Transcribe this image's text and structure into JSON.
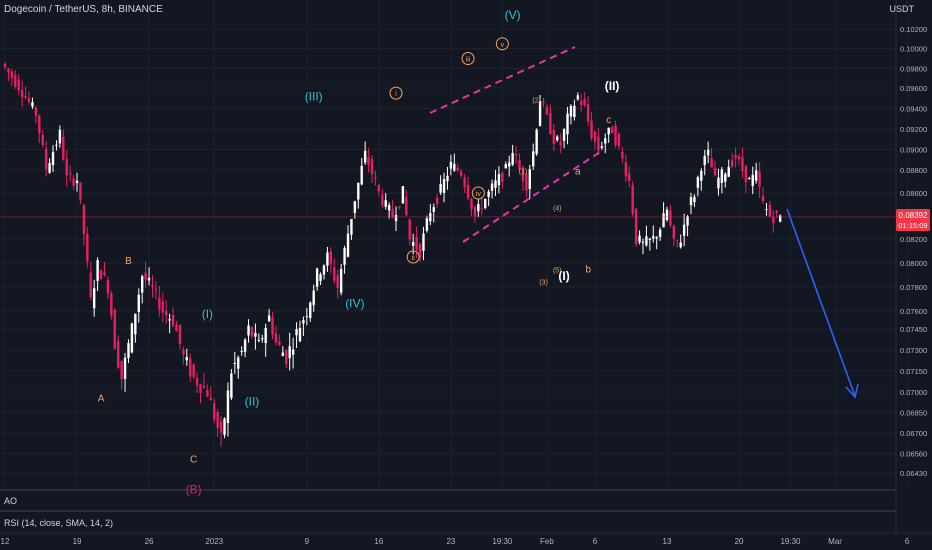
{
  "header": {
    "title": "Dogecoin / TetherUS, 8h, BINANCE",
    "currency": "USDT"
  },
  "panes": {
    "ao_label": "AO",
    "rsi_label": "RSI (14, close, SMA, 14, 2)"
  },
  "price_tag": {
    "value": "0.08392",
    "countdown": "01:15:09",
    "color": "#f23645"
  },
  "colors": {
    "up": "#ffffff",
    "down": "#e91e63",
    "channel": "#e535ab",
    "forecast": "#2962ff",
    "wave_cyan": "#26c6da",
    "wave_orange": "#f7a35c",
    "wave_white": "#ffffff",
    "wave_red": "#e91e63"
  },
  "chart_data": {
    "type": "candlestick",
    "title": "Dogecoin / TetherUS, 8h, BINANCE",
    "y_axis_labels": [
      "0.10200",
      "0.10000",
      "0.09800",
      "0.09600",
      "0.09400",
      "0.09200",
      "0.09000",
      "0.08800",
      "0.08600",
      "0.08200",
      "0.08000",
      "0.07800",
      "0.07600",
      "0.07450",
      "0.07300",
      "0.07150",
      "0.07000",
      "0.06850",
      "0.06700",
      "0.06560",
      "0.06430"
    ],
    "y_label_values": [
      0.102,
      0.1,
      0.098,
      0.096,
      0.094,
      0.092,
      0.09,
      0.088,
      0.086,
      0.082,
      0.08,
      0.078,
      0.076,
      0.0745,
      0.073,
      0.0715,
      0.07,
      0.0685,
      0.067,
      0.0656,
      0.0643
    ],
    "x_axis_labels": [
      "12",
      "19",
      "26",
      "2023",
      "9",
      "16",
      "23",
      "19:30",
      "Feb",
      "6",
      "13",
      "20",
      "19:30",
      "Mar",
      "6"
    ],
    "x_label_times": [
      0,
      21,
      42,
      61,
      88,
      109,
      130,
      145,
      158,
      172,
      193,
      214,
      229,
      242,
      263
    ],
    "last_price": 0.08392,
    "last_time": 226,
    "anchors": [
      [
        0,
        0.0985
      ],
      [
        5,
        0.0962
      ],
      [
        10,
        0.0935
      ],
      [
        13,
        0.0882
      ],
      [
        17,
        0.0915
      ],
      [
        19,
        0.0872
      ],
      [
        22,
        0.0872
      ],
      [
        24,
        0.0825
      ],
      [
        26,
        0.0768
      ],
      [
        28,
        0.0798
      ],
      [
        31,
        0.078
      ],
      [
        33,
        0.0735
      ],
      [
        35,
        0.071
      ],
      [
        38,
        0.0745
      ],
      [
        41,
        0.079
      ],
      [
        44,
        0.0778
      ],
      [
        47,
        0.076
      ],
      [
        50,
        0.0752
      ],
      [
        53,
        0.0725
      ],
      [
        56,
        0.071
      ],
      [
        60,
        0.07
      ],
      [
        64,
        0.0665
      ],
      [
        67,
        0.0715
      ],
      [
        70,
        0.0728
      ],
      [
        72,
        0.0745
      ],
      [
        75,
        0.0733
      ],
      [
        78,
        0.0755
      ],
      [
        80,
        0.0735
      ],
      [
        83,
        0.0725
      ],
      [
        86,
        0.0742
      ],
      [
        89,
        0.076
      ],
      [
        92,
        0.079
      ],
      [
        95,
        0.0805
      ],
      [
        98,
        0.078
      ],
      [
        100,
        0.081
      ],
      [
        103,
        0.0855
      ],
      [
        106,
        0.0895
      ],
      [
        110,
        0.086
      ],
      [
        112,
        0.0848
      ],
      [
        114,
        0.084
      ],
      [
        117,
        0.086
      ],
      [
        119,
        0.082
      ],
      [
        122,
        0.081
      ],
      [
        125,
        0.0845
      ],
      [
        128,
        0.0862
      ],
      [
        131,
        0.0885
      ],
      [
        134,
        0.0878
      ],
      [
        136,
        0.086
      ],
      [
        138,
        0.084
      ],
      [
        141,
        0.0855
      ],
      [
        144,
        0.0868
      ],
      [
        147,
        0.088
      ],
      [
        149,
        0.09
      ],
      [
        151,
        0.088
      ],
      [
        153,
        0.0868
      ],
      [
        155,
        0.0898
      ],
      [
        157,
        0.095
      ],
      [
        159,
        0.093
      ],
      [
        161,
        0.091
      ],
      [
        163,
        0.0905
      ],
      [
        165,
        0.093
      ],
      [
        168,
        0.0952
      ],
      [
        170,
        0.094
      ],
      [
        172,
        0.0915
      ],
      [
        174,
        0.09
      ],
      [
        176,
        0.0912
      ],
      [
        178,
        0.092
      ],
      [
        180,
        0.09
      ],
      [
        183,
        0.087
      ],
      [
        185,
        0.082
      ],
      [
        187,
        0.0815
      ],
      [
        190,
        0.082
      ],
      [
        192,
        0.083
      ],
      [
        194,
        0.0845
      ],
      [
        196,
        0.0815
      ],
      [
        198,
        0.082
      ],
      [
        200,
        0.0845
      ],
      [
        202,
        0.086
      ],
      [
        204,
        0.0885
      ],
      [
        206,
        0.0895
      ],
      [
        208,
        0.087
      ],
      [
        210,
        0.0875
      ],
      [
        212,
        0.0885
      ],
      [
        214,
        0.0893
      ],
      [
        216,
        0.088
      ],
      [
        218,
        0.087
      ],
      [
        220,
        0.0875
      ],
      [
        222,
        0.085
      ],
      [
        224,
        0.084
      ],
      [
        226,
        0.08392
      ]
    ],
    "wave_labels": [
      {
        "text": "(V)",
        "t": 148,
        "p": 0.103,
        "color": "cyan"
      },
      {
        "text": "(III)",
        "t": 90,
        "p": 0.0948,
        "color": "cyan"
      },
      {
        "text": "(IV)",
        "t": 102,
        "p": 0.0763,
        "color": "cyan"
      },
      {
        "text": "(I)",
        "t": 59,
        "p": 0.0754,
        "color": "cyan"
      },
      {
        "text": "(II)",
        "t": 72,
        "p": 0.069,
        "color": "cyan"
      },
      {
        "text": "B",
        "t": 36,
        "p": 0.0799,
        "color": "orange"
      },
      {
        "text": "A",
        "t": 28,
        "p": 0.0693,
        "color": "orange"
      },
      {
        "text": "C",
        "t": 55,
        "p": 0.065,
        "color": "orange"
      },
      {
        "text": "(B)",
        "t": 55,
        "p": 0.0629,
        "color": "red"
      },
      {
        "text": "(II)",
        "t": 177,
        "p": 0.0958,
        "color": "white"
      },
      {
        "text": "(I)",
        "t": 163,
        "p": 0.0786,
        "color": "white"
      },
      {
        "text": "c",
        "t": 176,
        "p": 0.0926,
        "color": "orange"
      },
      {
        "text": "a",
        "t": 167,
        "p": 0.0876,
        "color": "orange"
      },
      {
        "text": "b",
        "t": 170,
        "p": 0.0792,
        "color": "orange"
      },
      {
        "text": "(2)",
        "t": 155,
        "p": 0.0946,
        "color": "orange"
      },
      {
        "text": "(1)",
        "t": 151,
        "p": 0.0877,
        "color": "orange"
      },
      {
        "text": "(4)",
        "t": 161,
        "p": 0.0845,
        "color": "orange"
      },
      {
        "text": "(5)",
        "t": 161,
        "p": 0.0792,
        "color": "orange"
      },
      {
        "text": "(3)",
        "t": 157,
        "p": 0.0782,
        "color": "orange"
      }
    ],
    "circled_labels": [
      {
        "text": "i",
        "t": 114,
        "p": 0.0955
      },
      {
        "text": "iii",
        "t": 135,
        "p": 0.099
      },
      {
        "text": "v",
        "t": 145,
        "p": 0.1005
      },
      {
        "text": "iv",
        "t": 138,
        "p": 0.086
      },
      {
        "text": "ii",
        "t": 119,
        "p": 0.0805
      }
    ]
  }
}
